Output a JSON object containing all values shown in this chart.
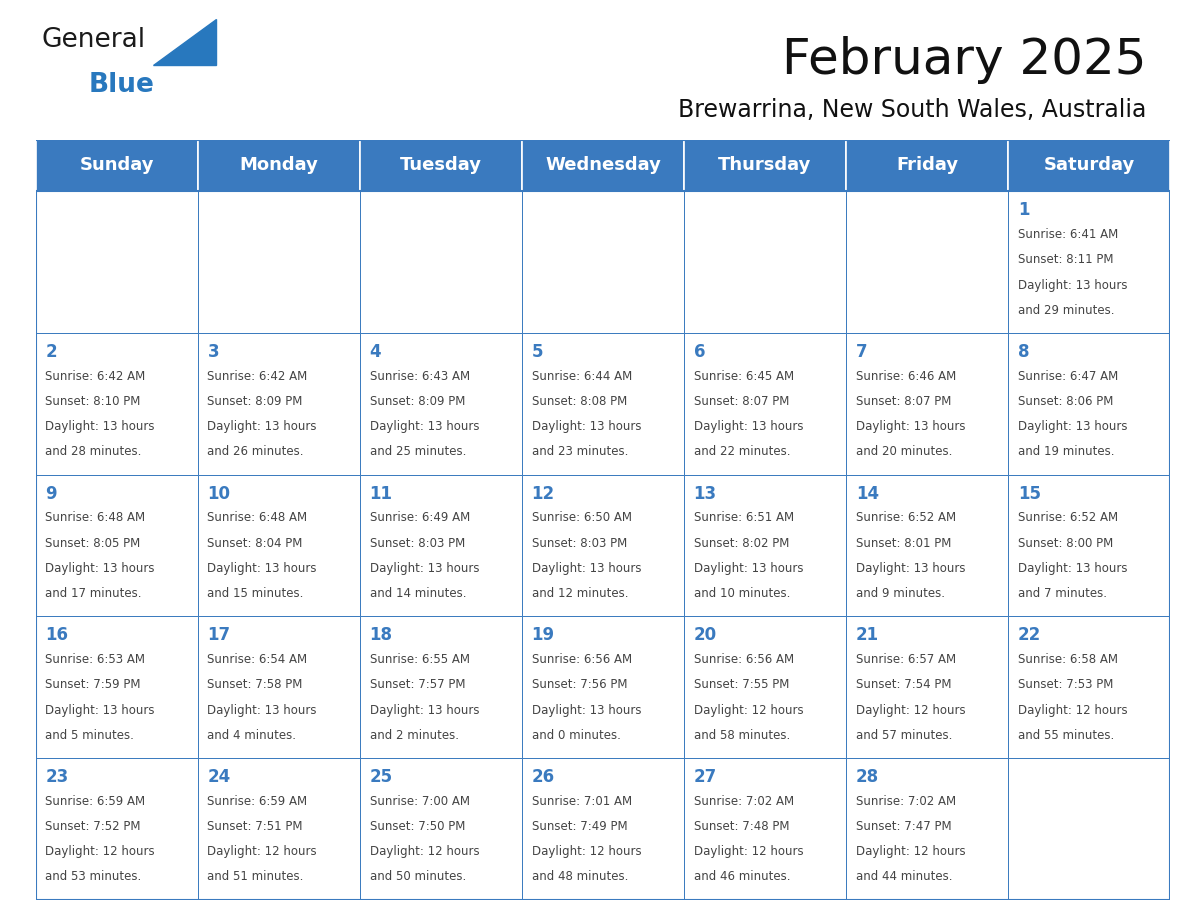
{
  "title": "February 2025",
  "subtitle": "Brewarrina, New South Wales, Australia",
  "header_bg": "#3a7abf",
  "header_text_color": "#ffffff",
  "day_number_color": "#3a7abf",
  "text_color": "#444444",
  "grid_color": "#3a7abf",
  "days_of_week": [
    "Sunday",
    "Monday",
    "Tuesday",
    "Wednesday",
    "Thursday",
    "Friday",
    "Saturday"
  ],
  "weeks": [
    [
      {
        "day": null,
        "info": null
      },
      {
        "day": null,
        "info": null
      },
      {
        "day": null,
        "info": null
      },
      {
        "day": null,
        "info": null
      },
      {
        "day": null,
        "info": null
      },
      {
        "day": null,
        "info": null
      },
      {
        "day": 1,
        "info": "Sunrise: 6:41 AM\nSunset: 8:11 PM\nDaylight: 13 hours\nand 29 minutes."
      }
    ],
    [
      {
        "day": 2,
        "info": "Sunrise: 6:42 AM\nSunset: 8:10 PM\nDaylight: 13 hours\nand 28 minutes."
      },
      {
        "day": 3,
        "info": "Sunrise: 6:42 AM\nSunset: 8:09 PM\nDaylight: 13 hours\nand 26 minutes."
      },
      {
        "day": 4,
        "info": "Sunrise: 6:43 AM\nSunset: 8:09 PM\nDaylight: 13 hours\nand 25 minutes."
      },
      {
        "day": 5,
        "info": "Sunrise: 6:44 AM\nSunset: 8:08 PM\nDaylight: 13 hours\nand 23 minutes."
      },
      {
        "day": 6,
        "info": "Sunrise: 6:45 AM\nSunset: 8:07 PM\nDaylight: 13 hours\nand 22 minutes."
      },
      {
        "day": 7,
        "info": "Sunrise: 6:46 AM\nSunset: 8:07 PM\nDaylight: 13 hours\nand 20 minutes."
      },
      {
        "day": 8,
        "info": "Sunrise: 6:47 AM\nSunset: 8:06 PM\nDaylight: 13 hours\nand 19 minutes."
      }
    ],
    [
      {
        "day": 9,
        "info": "Sunrise: 6:48 AM\nSunset: 8:05 PM\nDaylight: 13 hours\nand 17 minutes."
      },
      {
        "day": 10,
        "info": "Sunrise: 6:48 AM\nSunset: 8:04 PM\nDaylight: 13 hours\nand 15 minutes."
      },
      {
        "day": 11,
        "info": "Sunrise: 6:49 AM\nSunset: 8:03 PM\nDaylight: 13 hours\nand 14 minutes."
      },
      {
        "day": 12,
        "info": "Sunrise: 6:50 AM\nSunset: 8:03 PM\nDaylight: 13 hours\nand 12 minutes."
      },
      {
        "day": 13,
        "info": "Sunrise: 6:51 AM\nSunset: 8:02 PM\nDaylight: 13 hours\nand 10 minutes."
      },
      {
        "day": 14,
        "info": "Sunrise: 6:52 AM\nSunset: 8:01 PM\nDaylight: 13 hours\nand 9 minutes."
      },
      {
        "day": 15,
        "info": "Sunrise: 6:52 AM\nSunset: 8:00 PM\nDaylight: 13 hours\nand 7 minutes."
      }
    ],
    [
      {
        "day": 16,
        "info": "Sunrise: 6:53 AM\nSunset: 7:59 PM\nDaylight: 13 hours\nand 5 minutes."
      },
      {
        "day": 17,
        "info": "Sunrise: 6:54 AM\nSunset: 7:58 PM\nDaylight: 13 hours\nand 4 minutes."
      },
      {
        "day": 18,
        "info": "Sunrise: 6:55 AM\nSunset: 7:57 PM\nDaylight: 13 hours\nand 2 minutes."
      },
      {
        "day": 19,
        "info": "Sunrise: 6:56 AM\nSunset: 7:56 PM\nDaylight: 13 hours\nand 0 minutes."
      },
      {
        "day": 20,
        "info": "Sunrise: 6:56 AM\nSunset: 7:55 PM\nDaylight: 12 hours\nand 58 minutes."
      },
      {
        "day": 21,
        "info": "Sunrise: 6:57 AM\nSunset: 7:54 PM\nDaylight: 12 hours\nand 57 minutes."
      },
      {
        "day": 22,
        "info": "Sunrise: 6:58 AM\nSunset: 7:53 PM\nDaylight: 12 hours\nand 55 minutes."
      }
    ],
    [
      {
        "day": 23,
        "info": "Sunrise: 6:59 AM\nSunset: 7:52 PM\nDaylight: 12 hours\nand 53 minutes."
      },
      {
        "day": 24,
        "info": "Sunrise: 6:59 AM\nSunset: 7:51 PM\nDaylight: 12 hours\nand 51 minutes."
      },
      {
        "day": 25,
        "info": "Sunrise: 7:00 AM\nSunset: 7:50 PM\nDaylight: 12 hours\nand 50 minutes."
      },
      {
        "day": 26,
        "info": "Sunrise: 7:01 AM\nSunset: 7:49 PM\nDaylight: 12 hours\nand 48 minutes."
      },
      {
        "day": 27,
        "info": "Sunrise: 7:02 AM\nSunset: 7:48 PM\nDaylight: 12 hours\nand 46 minutes."
      },
      {
        "day": 28,
        "info": "Sunrise: 7:02 AM\nSunset: 7:47 PM\nDaylight: 12 hours\nand 44 minutes."
      },
      {
        "day": null,
        "info": null
      }
    ]
  ],
  "logo_text1": "General",
  "logo_text2": "Blue",
  "logo_text1_color": "#1a1a1a",
  "logo_text2_color": "#2878be",
  "logo_triangle_color": "#2878be",
  "title_fontsize": 36,
  "subtitle_fontsize": 17,
  "header_fontsize": 13,
  "day_num_fontsize": 12,
  "cell_text_fontsize": 8.5,
  "fig_width": 11.88,
  "fig_height": 9.18
}
